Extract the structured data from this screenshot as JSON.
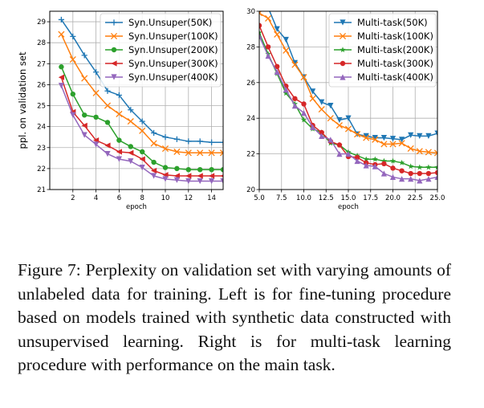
{
  "chart_data": [
    {
      "type": "line",
      "xlabel": "epoch",
      "ylabel": "ppl. on validation set",
      "xlim": [
        0,
        15
      ],
      "ylim": [
        21,
        29.5
      ],
      "xticks": [
        2,
        4,
        6,
        8,
        10,
        12,
        14
      ],
      "yticks": [
        21,
        22,
        23,
        24,
        25,
        26,
        27,
        28,
        29
      ],
      "tick_labels_x": [
        "2",
        "4",
        "6",
        "8",
        "10",
        "12",
        "14"
      ],
      "tick_labels_y": [
        "21",
        "22",
        "23",
        "24",
        "25",
        "26",
        "27",
        "28",
        "29"
      ],
      "grid": true,
      "legend": "top-right",
      "x": [
        1,
        2,
        3,
        4,
        5,
        6,
        7,
        8,
        9,
        10,
        11,
        12,
        13,
        14,
        15
      ],
      "series": [
        {
          "name": "Syn.Unsuper(50K)",
          "color": "#1f77b4",
          "marker": "plus",
          "values": [
            29.1,
            28.3,
            27.4,
            26.6,
            25.7,
            25.5,
            24.8,
            24.25,
            23.7,
            23.5,
            23.4,
            23.3,
            23.3,
            23.25,
            23.25
          ]
        },
        {
          "name": "Syn.Unsuper(100K)",
          "color": "#ff7f0e",
          "marker": "x",
          "values": [
            28.4,
            27.2,
            26.3,
            25.6,
            25.0,
            24.6,
            24.25,
            23.8,
            23.2,
            22.95,
            22.8,
            22.75,
            22.75,
            22.75,
            22.75
          ]
        },
        {
          "name": "Syn.Unsuper(200K)",
          "color": "#2ca02c",
          "marker": "circle",
          "values": [
            26.85,
            25.55,
            24.55,
            24.45,
            24.2,
            23.35,
            23.05,
            22.8,
            22.3,
            22.05,
            22.0,
            21.95,
            21.95,
            21.95,
            21.95
          ]
        },
        {
          "name": "Syn.Unsuper(300K)",
          "color": "#d62728",
          "marker": "triangle-left",
          "values": [
            26.35,
            24.7,
            24.05,
            23.35,
            23.1,
            22.8,
            22.75,
            22.45,
            21.9,
            21.7,
            21.65,
            21.65,
            21.65,
            21.65,
            21.65
          ]
        },
        {
          "name": "Syn.Unsuper(400K)",
          "color": "#9467bd",
          "marker": "triangle-down",
          "values": [
            25.95,
            24.55,
            23.6,
            23.15,
            22.7,
            22.45,
            22.35,
            22.05,
            21.65,
            21.5,
            21.45,
            21.4,
            21.4,
            21.4,
            21.4
          ]
        }
      ]
    },
    {
      "type": "line",
      "xlabel": "epoch",
      "ylabel": "",
      "xlim": [
        5,
        25
      ],
      "ylim": [
        20,
        30
      ],
      "xticks": [
        5,
        7.5,
        10,
        12.5,
        15,
        17.5,
        20,
        22.5,
        25
      ],
      "yticks": [
        20,
        22,
        24,
        26,
        28,
        30
      ],
      "tick_labels_x": [
        "5.0",
        "7.5",
        "10.0",
        "12.5",
        "15.0",
        "17.5",
        "20.0",
        "22.5",
        "25.0"
      ],
      "tick_labels_y": [
        "20",
        "22",
        "24",
        "26",
        "28",
        "30"
      ],
      "grid": true,
      "legend": "top-right",
      "x": [
        5,
        6,
        7,
        8,
        9,
        10,
        11,
        12,
        13,
        14,
        15,
        16,
        17,
        18,
        19,
        20,
        21,
        22,
        23,
        24,
        25
      ],
      "series": [
        {
          "name": "Multi-task(50K)",
          "color": "#1f77b4",
          "marker": "triangle-down",
          "values": [
            31.0,
            30.2,
            29.0,
            28.4,
            27.1,
            26.3,
            25.5,
            24.9,
            24.7,
            23.9,
            24.0,
            23.1,
            23.0,
            22.9,
            22.9,
            22.85,
            22.8,
            23.05,
            23.0,
            23.0,
            23.15
          ]
        },
        {
          "name": "Multi-task(100K)",
          "color": "#ff7f0e",
          "marker": "x",
          "values": [
            29.9,
            29.6,
            28.7,
            27.8,
            27.0,
            26.3,
            25.1,
            24.5,
            24.0,
            23.6,
            23.4,
            23.1,
            22.9,
            22.8,
            22.55,
            22.55,
            22.6,
            22.3,
            22.15,
            22.1,
            22.05
          ]
        },
        {
          "name": "Multi-task(200K)",
          "color": "#2ca02c",
          "marker": "star",
          "values": [
            28.8,
            27.6,
            26.5,
            25.4,
            24.8,
            23.9,
            23.4,
            23.2,
            22.6,
            22.5,
            22.1,
            21.9,
            21.7,
            21.7,
            21.6,
            21.6,
            21.5,
            21.3,
            21.25,
            21.25,
            21.25
          ]
        },
        {
          "name": "Multi-task(300K)",
          "color": "#d62728",
          "marker": "circle",
          "values": [
            29.2,
            28.0,
            26.9,
            25.8,
            25.1,
            24.8,
            23.6,
            23.2,
            22.7,
            22.5,
            21.85,
            21.8,
            21.5,
            21.4,
            21.45,
            21.2,
            21.05,
            20.9,
            20.9,
            20.9,
            20.95
          ]
        },
        {
          "name": "Multi-task(400K)",
          "color": "#9467bd",
          "marker": "triangle-up",
          "values": [
            28.6,
            27.5,
            26.6,
            25.6,
            24.7,
            24.3,
            23.5,
            23.0,
            22.8,
            22.0,
            22.0,
            21.6,
            21.35,
            21.3,
            20.9,
            20.7,
            20.6,
            20.6,
            20.5,
            20.6,
            20.7
          ]
        }
      ]
    }
  ],
  "caption": "Figure 7: Perplexity on validation set with varying amounts of unlabeled data for training. Left is for fine-tuning procedure based on models trained with synthetic data constructed with unsupervised learning. Right is for multi-task learning procedure with performance on the main task."
}
